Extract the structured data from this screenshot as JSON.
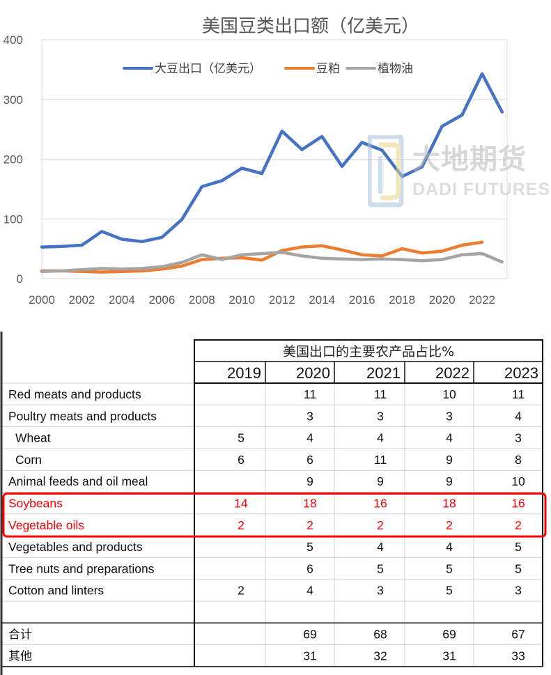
{
  "chart_data": [
    {
      "type": "line",
      "title": "美国豆类出口额（亿美元）",
      "xlabel": "",
      "ylabel": "",
      "ylim": [
        0,
        400
      ],
      "xlim": [
        2000,
        2023
      ],
      "y_ticks": [
        0,
        100,
        200,
        300,
        400
      ],
      "x_ticks": [
        2000,
        2002,
        2004,
        2006,
        2008,
        2010,
        2012,
        2014,
        2016,
        2018,
        2020,
        2022
      ],
      "grid": "horizontal",
      "legend_position": "top",
      "x": [
        2000,
        2001,
        2002,
        2003,
        2004,
        2005,
        2006,
        2007,
        2008,
        2009,
        2010,
        2011,
        2012,
        2013,
        2014,
        2015,
        2016,
        2017,
        2018,
        2019,
        2020,
        2021,
        2022,
        2023
      ],
      "series": [
        {
          "name": "大豆出口（亿美元）",
          "color": "#4472C4",
          "values": [
            53,
            54,
            56,
            79,
            66,
            62,
            69,
            99,
            154,
            164,
            185,
            176,
            247,
            216,
            238,
            188,
            228,
            215,
            171,
            187,
            255,
            274,
            343,
            279
          ]
        },
        {
          "name": "豆粕",
          "color": "#ED7D31",
          "values": [
            13,
            13,
            12,
            11,
            12,
            13,
            16,
            21,
            32,
            34,
            35,
            31,
            47,
            53,
            55,
            48,
            40,
            38,
            50,
            43,
            46,
            56,
            61,
            null
          ]
        },
        {
          "name": "植物油",
          "color": "#A5A5A5",
          "values": [
            12,
            13,
            15,
            17,
            16,
            17,
            20,
            27,
            40,
            32,
            40,
            42,
            44,
            38,
            34,
            33,
            32,
            33,
            32,
            30,
            32,
            40,
            42,
            28
          ]
        }
      ]
    },
    {
      "type": "table",
      "title": "美国出口的主要农产品占比%",
      "years": [
        "2019",
        "2020",
        "2021",
        "2022",
        "2023"
      ],
      "rows": [
        {
          "label": "Red meats and products",
          "values": [
            "",
            "11",
            "11",
            "10",
            "11"
          ],
          "highlight": false
        },
        {
          "label": "Poultry meats and products",
          "values": [
            "",
            "3",
            "3",
            "3",
            "4"
          ],
          "highlight": false
        },
        {
          "label": " Wheat",
          "values": [
            "5",
            "4",
            "4",
            "4",
            "3"
          ],
          "highlight": false
        },
        {
          "label": " Corn",
          "values": [
            "6",
            "6",
            "11",
            "9",
            "8"
          ],
          "highlight": false
        },
        {
          "label": "Animal feeds and oil meal",
          "values": [
            "",
            "9",
            "9",
            "9",
            "10"
          ],
          "highlight": false
        },
        {
          "label": "Soybeans",
          "values": [
            "14",
            "18",
            "16",
            "18",
            "16"
          ],
          "highlight": true
        },
        {
          "label": "Vegetable oils",
          "values": [
            "2",
            "2",
            "2",
            "2",
            "2"
          ],
          "highlight": true
        },
        {
          "label": "Vegetables and products",
          "values": [
            "",
            "5",
            "4",
            "4",
            "5"
          ],
          "highlight": false
        },
        {
          "label": "Tree nuts and preparations",
          "values": [
            "",
            "6",
            "5",
            "5",
            "5"
          ],
          "highlight": false
        },
        {
          "label": "Cotton and linters",
          "values": [
            "2",
            "4",
            "3",
            "5",
            "3"
          ],
          "highlight": false
        },
        {
          "label": "",
          "values": [
            "",
            "",
            "",
            "",
            ""
          ],
          "highlight": false
        },
        {
          "label": "合计",
          "values": [
            "",
            "69",
            "68",
            "69",
            "67"
          ],
          "highlight": false
        },
        {
          "label": "其他",
          "values": [
            "",
            "31",
            "32",
            "31",
            "33"
          ],
          "highlight": false
        }
      ],
      "highlight_color": "#FF0000"
    }
  ],
  "watermark": {
    "cn": "大地期货",
    "en": "DADI FUTURES"
  }
}
